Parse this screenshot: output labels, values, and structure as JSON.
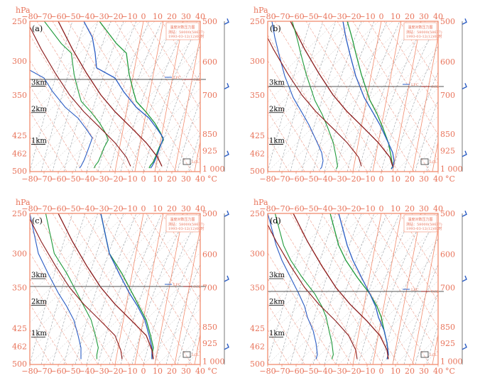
{
  "panels": [
    {
      "id": "a",
      "label": "(a)",
      "legend_title": "温度对数压力图",
      "legend_lines": [
        "测站：58000(58677)",
        "1993-03-12(12)00时"
      ],
      "ccl_text": "CCL",
      "lfc_text": "LFC",
      "lcl_text": "LCL"
    },
    {
      "id": "b",
      "label": "(b)",
      "legend_title": "温度对数压力图",
      "legend_lines": [
        "测站：58000(58677)",
        "1993-03-12(12)00时"
      ],
      "ccl_text": "CCL",
      "lfc_text": "LFC",
      "lcl_text": "LCL"
    },
    {
      "id": "c",
      "label": "(c)",
      "legend_title": "温度对数压力图",
      "legend_lines": [
        "测站：58000(58677)",
        "1993-03-12(12)00时"
      ],
      "ccl_text": "CCL",
      "lfc_text": "LFC",
      "lcl_text": "LCL"
    },
    {
      "id": "d",
      "label": "(d)",
      "legend_title": "温度对数压力图",
      "legend_lines": [
        "测站：58000(58677)",
        "1993-03-12(12)00时"
      ],
      "ccl_text": "CCL",
      "lfc_text": "LFC",
      "lcl_text": "LCL"
    }
  ],
  "axis": {
    "y_unit": "hPa",
    "x_unit": "°C",
    "x_ticks": [
      "−80",
      "−70",
      "−60",
      "−50",
      "−40",
      "−30",
      "−20",
      "−10",
      "0",
      "10",
      "20",
      "30",
      "40"
    ],
    "left_ticks": [
      "250",
      "300",
      "350",
      "425",
      "462",
      "500"
    ],
    "right_ticks": [
      "500",
      "600",
      "700",
      "850",
      "925",
      "1 000"
    ],
    "km_labels": [
      "3km",
      "2km",
      "1km"
    ]
  },
  "colors": {
    "axis": "#f28c6e",
    "temperature": "#1f9a3a",
    "dewpoint": "#2a5cc4",
    "parcel": "#8b1a1a",
    "dry_adiabat": "#e8735a",
    "moist_adiabat": "#9aa0a6",
    "wind": "#2a5cc4"
  },
  "chart_data": [
    {
      "type": "line",
      "panel": "a",
      "x_range": [
        -80,
        40
      ],
      "series": [
        {
          "role": "temperature",
          "points": [
            [
              -31,
              250
            ],
            [
              -19,
              278
            ],
            [
              -12,
              290
            ],
            [
              -10,
              320
            ],
            [
              -7,
              345
            ],
            [
              -5,
              362
            ],
            [
              2,
              382
            ],
            [
              8,
              402
            ],
            [
              12,
              420
            ],
            [
              14,
              434
            ],
            [
              11,
              450
            ],
            [
              9,
              465
            ],
            [
              7,
              480
            ],
            [
              5,
              488
            ],
            [
              4,
              494
            ]
          ]
        },
        {
          "role": "dewpoint",
          "points": [
            [
              -42,
              250
            ],
            [
              -36,
              270
            ],
            [
              -34,
              290
            ],
            [
              -33,
              310
            ],
            [
              -20,
              325
            ],
            [
              -14,
              345
            ],
            [
              -5,
              373
            ],
            [
              4,
              393
            ],
            [
              10,
              414
            ],
            [
              14,
              430
            ],
            [
              12,
              446
            ],
            [
              10,
              462
            ],
            [
              8,
              478
            ],
            [
              6,
              490
            ],
            [
              5,
              494
            ]
          ]
        },
        {
          "role": "parcel",
          "points": [
            [
              -60,
              250
            ],
            [
              -50,
              285
            ],
            [
              -40,
              318
            ],
            [
              -30,
              350
            ],
            [
              -20,
              381
            ],
            [
              -8,
              412
            ],
            [
              2,
              440
            ],
            [
              10,
              470
            ],
            [
              13,
              490
            ]
          ]
        }
      ]
    },
    {
      "type": "line",
      "panel": "b",
      "x_range": [
        -80,
        40
      ],
      "series": [
        {
          "role": "temperature",
          "points": [
            [
              -24,
              250
            ],
            [
              -22,
              262
            ],
            [
              -20,
              275
            ],
            [
              -18,
              290
            ],
            [
              -14,
              320
            ],
            [
              -8,
              360
            ],
            [
              -3,
              385
            ],
            [
              1,
              410
            ],
            [
              5,
              440
            ],
            [
              7,
              470
            ],
            [
              8,
              490
            ],
            [
              7,
              496
            ]
          ]
        },
        {
          "role": "dewpoint",
          "points": [
            [
              -27,
              250
            ],
            [
              -25,
              270
            ],
            [
              -22,
              292
            ],
            [
              -18,
              322
            ],
            [
              -12,
              355
            ],
            [
              -6,
              382
            ],
            [
              -1,
              405
            ],
            [
              4,
              434
            ],
            [
              8,
              460
            ],
            [
              9,
              478
            ],
            [
              8,
              492
            ],
            [
              7,
              496
            ]
          ]
        },
        {
          "role": "parcel",
          "points": [
            [
              -64,
              250
            ],
            [
              -54,
              285
            ],
            [
              -44,
              318
            ],
            [
              -34,
              350
            ],
            [
              -24,
              381
            ],
            [
              -12,
              412
            ],
            [
              -2,
              440
            ],
            [
              6,
              470
            ],
            [
              8,
              490
            ]
          ]
        }
      ]
    },
    {
      "type": "line",
      "panel": "c",
      "x_range": [
        -80,
        40
      ],
      "series": [
        {
          "role": "temperature",
          "points": [
            [
              -30,
              250
            ],
            [
              -27,
              275
            ],
            [
              -24,
              300
            ],
            [
              -15,
              330
            ],
            [
              -8,
              360
            ],
            [
              -3,
              385
            ],
            [
              2,
              410
            ],
            [
              5,
              440
            ],
            [
              7,
              465
            ],
            [
              6,
              480
            ],
            [
              6,
              490
            ]
          ]
        },
        {
          "role": "dewpoint",
          "points": [
            [
              -30,
              250
            ],
            [
              -27,
              275
            ],
            [
              -24,
              300
            ],
            [
              -17,
              330
            ],
            [
              -10,
              360
            ],
            [
              -4,
              385
            ],
            [
              1,
              410
            ],
            [
              4,
              440
            ],
            [
              6,
              465
            ],
            [
              6,
              480
            ],
            [
              6,
              490
            ]
          ]
        },
        {
          "role": "parcel",
          "points": [
            [
              -60,
              250
            ],
            [
              -50,
              285
            ],
            [
              -40,
              318
            ],
            [
              -30,
              350
            ],
            [
              -20,
              381
            ],
            [
              -8,
              412
            ],
            [
              2,
              440
            ],
            [
              6,
              470
            ],
            [
              7,
              490
            ]
          ]
        }
      ]
    },
    {
      "type": "line",
      "panel": "d",
      "x_range": [
        -80,
        40
      ],
      "series": [
        {
          "role": "temperature",
          "points": [
            [
              -36,
              250
            ],
            [
              -33,
              270
            ],
            [
              -30,
              290
            ],
            [
              -25,
              310
            ],
            [
              -17,
              335
            ],
            [
              -8,
              362
            ],
            [
              -3,
              385
            ],
            [
              0,
              405
            ],
            [
              2,
              430
            ],
            [
              4,
              455
            ],
            [
              5,
              480
            ],
            [
              4,
              490
            ]
          ]
        },
        {
          "role": "dewpoint",
          "points": [
            [
              -30,
              250
            ],
            [
              -27,
              270
            ],
            [
              -24,
              290
            ],
            [
              -20,
              310
            ],
            [
              -14,
              335
            ],
            [
              -8,
              362
            ],
            [
              -4,
              385
            ],
            [
              -2,
              405
            ],
            [
              2,
              430
            ],
            [
              4,
              455
            ],
            [
              5,
              480
            ],
            [
              4,
              490
            ]
          ]
        },
        {
          "role": "parcel",
          "points": [
            [
              -62,
              250
            ],
            [
              -52,
              285
            ],
            [
              -42,
              318
            ],
            [
              -32,
              350
            ],
            [
              -22,
              381
            ],
            [
              -10,
              412
            ],
            [
              -1,
              440
            ],
            [
              4,
              470
            ],
            [
              5,
              490
            ]
          ]
        }
      ]
    }
  ]
}
